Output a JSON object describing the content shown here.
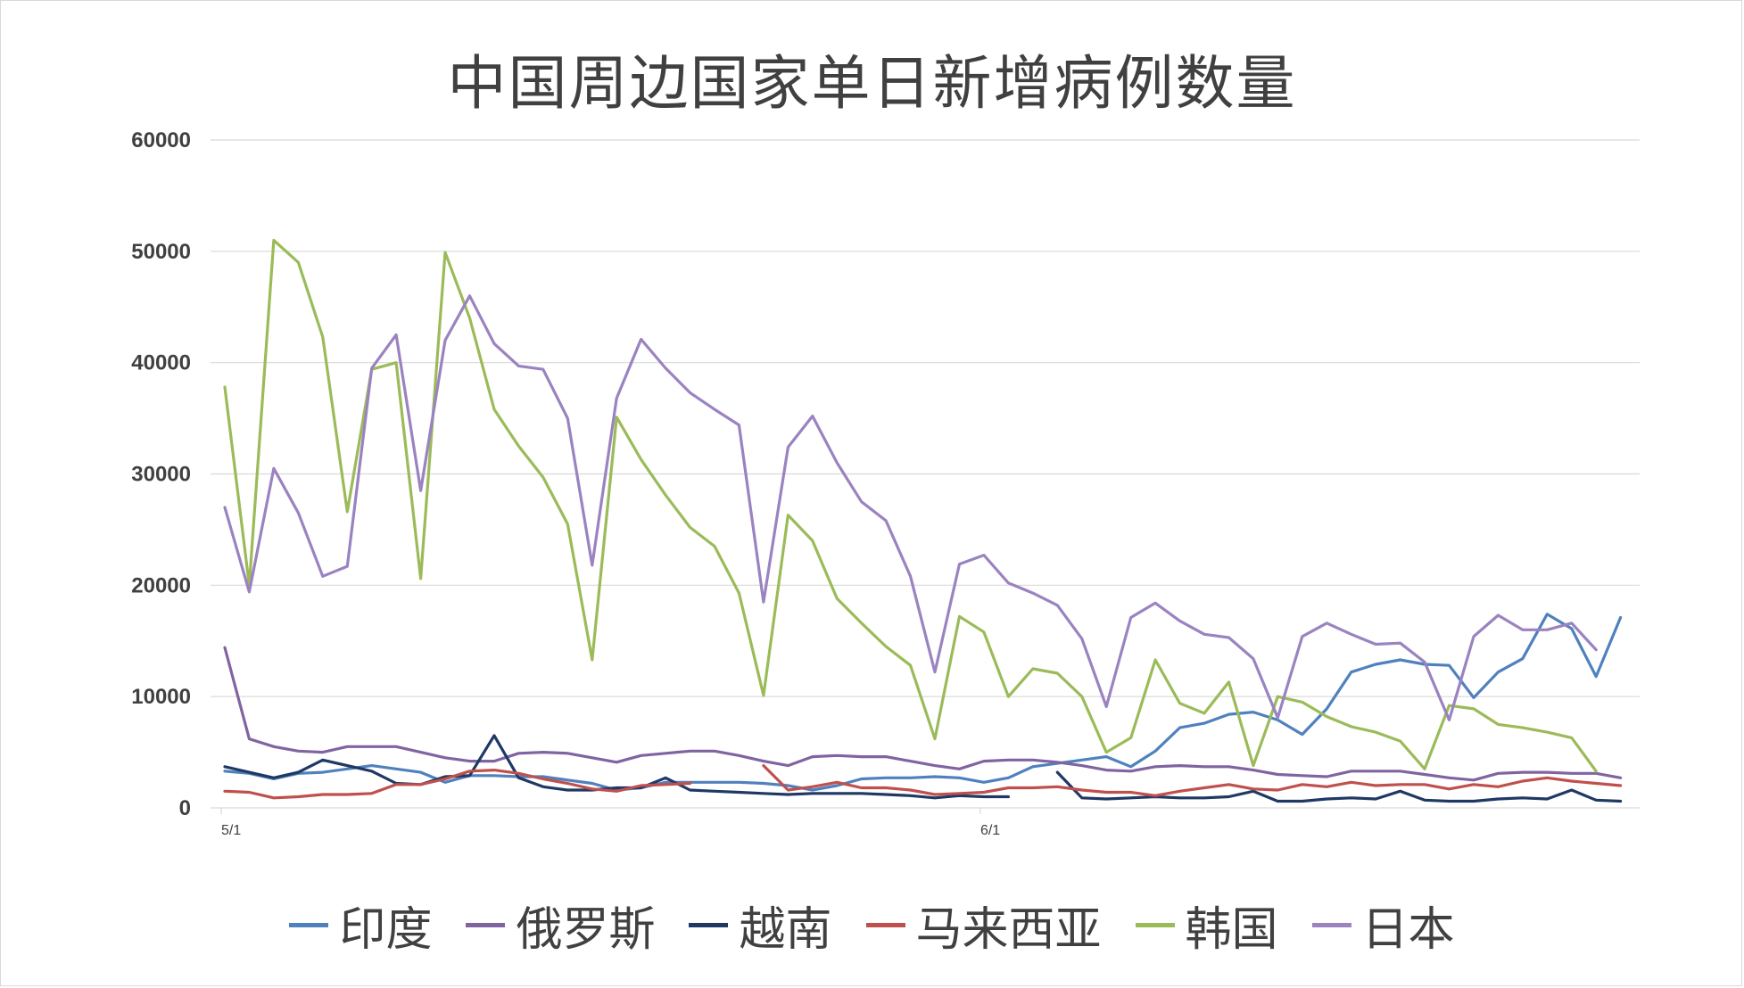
{
  "chart_data": {
    "type": "line",
    "title": "中国周边国家单日新增病例数量",
    "xlabel": "",
    "ylabel": "",
    "ylim": [
      0,
      60000
    ],
    "yticks": [
      0,
      10000,
      20000,
      30000,
      40000,
      50000,
      60000
    ],
    "x_tick_labels": [
      {
        "index": 0,
        "label": "5/1"
      },
      {
        "index": 31,
        "label": "6/1"
      }
    ],
    "grid": true,
    "legend_position": "bottom",
    "series": [
      {
        "name": "印度",
        "color": "#4f81bd",
        "values": [
          3300,
          3100,
          2600,
          3100,
          3200,
          3500,
          3800,
          3500,
          3200,
          2300,
          2900,
          2900,
          2800,
          2800,
          2500,
          2200,
          1600,
          1800,
          2300,
          2300,
          2300,
          2300,
          2200,
          2000,
          1600,
          2000,
          2600,
          2700,
          2700,
          2800,
          2700,
          2300,
          2700,
          3700,
          4000,
          4300,
          4600,
          3700,
          5100,
          7200,
          7600,
          8400,
          8600,
          7900,
          6600,
          8900,
          12200,
          12900,
          13300,
          12900,
          12800,
          9900,
          12200,
          13400,
          17400,
          16100,
          11800,
          17100
        ]
      },
      {
        "name": "俄罗斯",
        "color": "#8064a2",
        "values": [
          14400,
          6200,
          5500,
          5100,
          5000,
          5500,
          5500,
          5500,
          5000,
          4500,
          4200,
          4200,
          4900,
          5000,
          4900,
          4500,
          4100,
          4700,
          4900,
          5100,
          5100,
          4700,
          4200,
          3800,
          4600,
          4700,
          4600,
          4600,
          4200,
          3800,
          3500,
          4200,
          4300,
          4300,
          4100,
          3800,
          3400,
          3300,
          3700,
          3800,
          3700,
          3700,
          3400,
          3000,
          2900,
          2800,
          3300,
          3300,
          3300,
          3000,
          2700,
          2500,
          3100,
          3200,
          3200,
          3100,
          3100,
          2700
        ]
      },
      {
        "name": "越南",
        "color": "#1f3864",
        "values": [
          3700,
          3200,
          2700,
          3200,
          4300,
          3800,
          3300,
          2200,
          2100,
          2800,
          2900,
          6500,
          2700,
          1900,
          1600,
          1600,
          1800,
          1800,
          2700,
          1600,
          1500,
          1400,
          1300,
          1200,
          1300,
          1300,
          1300,
          1200,
          1100,
          900,
          1100,
          1000,
          1000,
          null,
          3200,
          900,
          800,
          900,
          1000,
          900,
          900,
          1000,
          1500,
          600,
          600,
          800,
          900,
          800,
          1500,
          700,
          600,
          600,
          800,
          900,
          800,
          1600,
          700,
          600
        ]
      },
      {
        "name": "马来西亚",
        "color": "#c0504d",
        "values": [
          1500,
          1400,
          900,
          1000,
          1200,
          1200,
          1300,
          2100,
          2100,
          2600,
          3300,
          3400,
          3100,
          2600,
          2200,
          1700,
          1500,
          2000,
          2100,
          2200,
          null,
          null,
          3800,
          1600,
          1900,
          2300,
          1800,
          1800,
          1600,
          1200,
          1300,
          1400,
          1800,
          1800,
          1900,
          1600,
          1400,
          1400,
          1100,
          1500,
          1800,
          2100,
          1700,
          1600,
          2100,
          1900,
          2300,
          2000,
          2100,
          2100,
          1700,
          2100,
          1900,
          2400,
          2700,
          2400,
          2200,
          2000
        ]
      },
      {
        "name": "韩国",
        "color": "#9bbb59",
        "values": [
          37800,
          20000,
          51000,
          49000,
          42300,
          26600,
          39400,
          40000,
          20600,
          49900,
          44000,
          35800,
          32500,
          29700,
          25500,
          13300,
          35100,
          31300,
          28100,
          25200,
          23500,
          19300,
          10100,
          26300,
          24000,
          18800,
          16600,
          14500,
          12800,
          6200,
          17200,
          15800,
          10000,
          12500,
          12100,
          10000,
          5000,
          6300,
          13300,
          9400,
          8500,
          11300,
          3800,
          10000,
          9500,
          8200,
          7300,
          6800,
          6000,
          3500,
          9200,
          8900,
          7500,
          7200,
          6800,
          6300,
          3300,
          null
        ]
      },
      {
        "name": "日本",
        "color": "#9a83c0",
        "values": [
          27000,
          19400,
          30500,
          26500,
          20800,
          21700,
          39500,
          42500,
          28500,
          42000,
          46000,
          41700,
          39700,
          39400,
          35000,
          21800,
          36800,
          42100,
          39500,
          37300,
          35800,
          34400,
          18500,
          32400,
          35200,
          31000,
          27500,
          25800,
          20800,
          12200,
          21900,
          22700,
          20200,
          19300,
          18200,
          15200,
          9100,
          17100,
          18400,
          16800,
          15600,
          15300,
          13400,
          8100,
          15400,
          16600,
          15600,
          14700,
          14800,
          13100,
          7900,
          15400,
          17300,
          16000,
          16000,
          16600,
          14200,
          null
        ]
      }
    ]
  }
}
